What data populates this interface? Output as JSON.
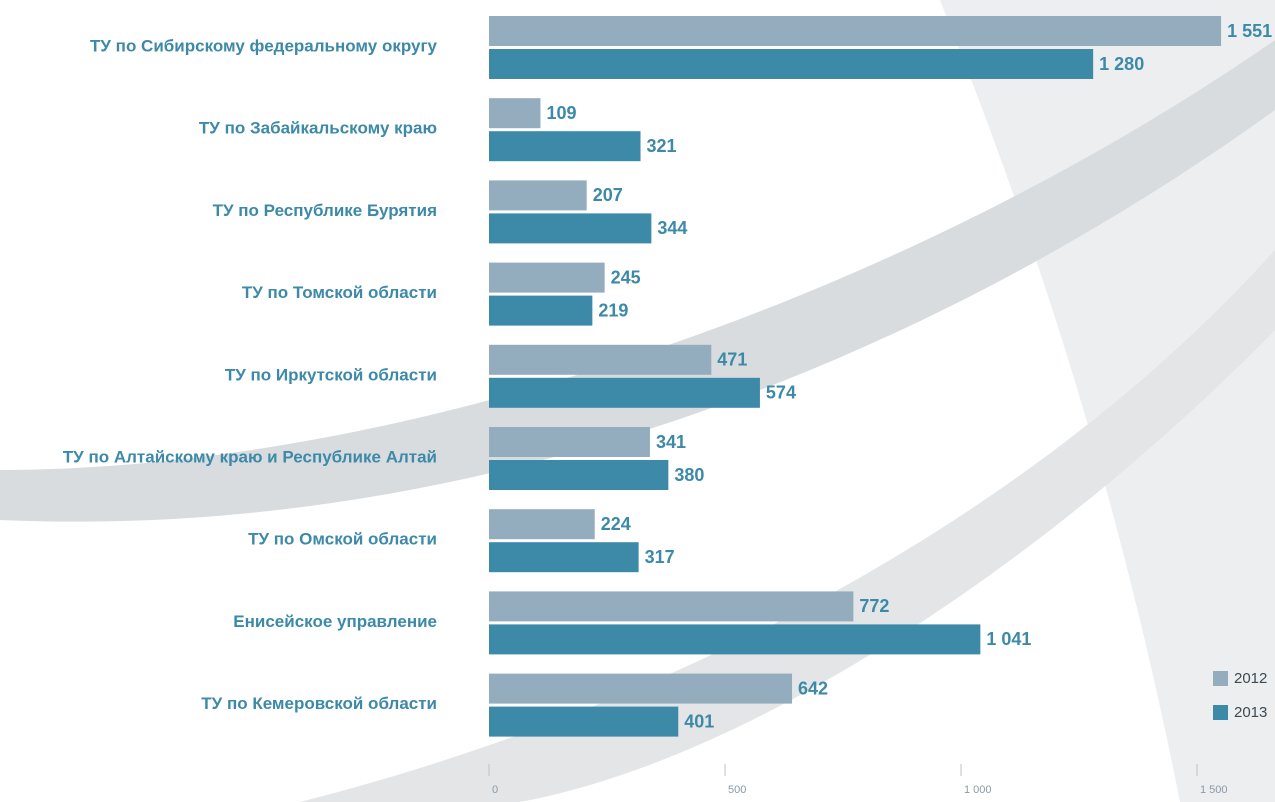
{
  "chart_data": {
    "type": "hbar",
    "categories": [
      "ТУ по Сибирскому федеральному округу",
      "ТУ по  Забайкальскому краю",
      "ТУ по Республике Бурятия",
      "ТУ по Томской области",
      "ТУ по Иркутской области",
      "ТУ по Алтайскому краю и Республике Алтай",
      "ТУ по Омской области",
      "Енисейское управление",
      "ТУ по Кемеровской области"
    ],
    "series": [
      {
        "name": "2012",
        "color": "#93adbf",
        "values": [
          1551,
          109,
          207,
          245,
          471,
          341,
          224,
          772,
          642
        ],
        "value_labels": [
          "1 551",
          "109",
          "207",
          "245",
          "471",
          "341",
          "224",
          "772",
          "642"
        ]
      },
      {
        "name": "2013",
        "color": "#3d89a8",
        "values": [
          1280,
          321,
          344,
          219,
          574,
          380,
          317,
          1041,
          401
        ],
        "value_labels": [
          "1 280",
          "321",
          "344",
          "219",
          "574",
          "380",
          "317",
          "1 041",
          "401"
        ]
      }
    ],
    "xlim": [
      0,
      1600
    ],
    "xticks": [
      0,
      500,
      {
        "value": 1000,
        "label": "1 000"
      },
      {
        "value": 1500,
        "label": "1 500"
      }
    ],
    "legend": "bottom-right"
  }
}
